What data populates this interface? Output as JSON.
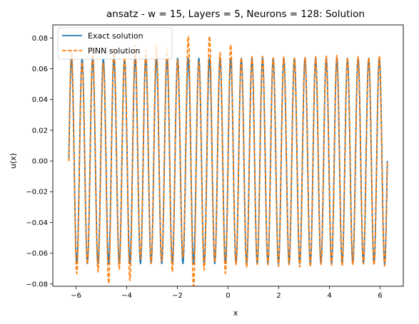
{
  "chart_data": {
    "type": "line",
    "title": "ansatz - w = 15, Layers = 5, Neurons = 128: Solution",
    "xlabel": "x",
    "ylabel": "u(x)",
    "xlim": [
      -6.915,
      6.915
    ],
    "ylim": [
      -0.0815,
      0.0885
    ],
    "xticks": [
      -6,
      -4,
      -2,
      0,
      2,
      4,
      6
    ],
    "xtick_labels": [
      "−6",
      "−4",
      "−2",
      "0",
      "2",
      "4",
      "6"
    ],
    "yticks": [
      -0.08,
      -0.06,
      -0.04,
      -0.02,
      0.0,
      0.02,
      0.04,
      0.06,
      0.08
    ],
    "ytick_labels": [
      "−0.08",
      "−0.06",
      "−0.04",
      "−0.02",
      "0.00",
      "0.02",
      "0.04",
      "0.06",
      "0.08"
    ],
    "grid": false,
    "legend_position": "top-left",
    "x_domain": [
      -6.2832,
      6.2832
    ],
    "series": [
      {
        "name": "Exact solution",
        "color": "#1f77b4",
        "style": "solid",
        "formula": "u(x) = (1/15) * sin(15 x)",
        "amplitude": 0.0667,
        "frequency": 15
      },
      {
        "name": "PINN solution",
        "color": "#ff7f0e",
        "style": "dashed",
        "formula": "approx. (1/15) * sin(15 x) with irregular amplitude on x < 0",
        "amplitude": 0.0667,
        "frequency": 15,
        "negative_side_amplitude_range": [
          0.062,
          0.082
        ]
      }
    ]
  }
}
